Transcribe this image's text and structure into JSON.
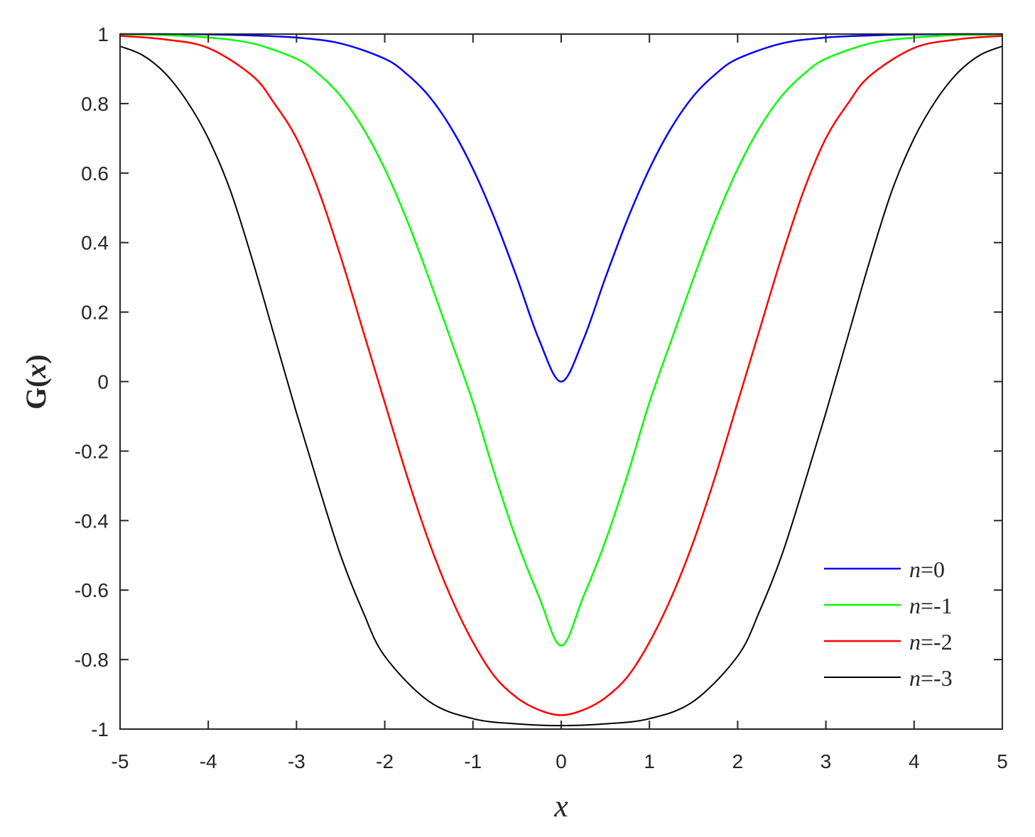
{
  "chart_data": {
    "type": "line",
    "xlabel": "x",
    "ylabel": {
      "prefix": "G(",
      "var": "x",
      "suffix": ")"
    },
    "xlim": [
      -5,
      5
    ],
    "ylim": [
      -1,
      1
    ],
    "x_ticks": [
      -5,
      -4,
      -3,
      -2,
      -1,
      0,
      1,
      2,
      3,
      4,
      5
    ],
    "y_ticks": [
      1,
      0.8,
      0.6,
      0.4,
      0.2,
      0,
      -0.2,
      -0.4,
      -0.6,
      -0.8,
      -1
    ],
    "x_tick_labels": [
      "-5",
      "-4",
      "-3",
      "-2",
      "-1",
      "0",
      "1",
      "2",
      "3",
      "4",
      "5"
    ],
    "y_tick_labels": [
      "1",
      "0.8",
      "0.6",
      "0.4",
      "0.2",
      "0",
      "-0.2",
      "-0.4",
      "-0.6",
      "-0.8",
      "-1"
    ],
    "grid": false,
    "legend_position": "bottom-right",
    "series": [
      {
        "name": "n=0",
        "legend": {
          "var": "n",
          "rest": "=0"
        },
        "color": "#0000ff",
        "x": [
          -5,
          -4.5,
          -4,
          -3.5,
          -3,
          -2.5,
          -2,
          -1.75,
          -1.5,
          -1.25,
          -1,
          -0.75,
          -0.5,
          -0.25,
          0,
          0.25,
          0.5,
          0.75,
          1,
          1.25,
          1.5,
          1.75,
          2,
          2.5,
          3,
          3.5,
          4,
          4.5,
          5
        ],
        "y": [
          1.0,
          1.0,
          0.999,
          0.996,
          0.99,
          0.973,
          0.929,
          0.885,
          0.822,
          0.731,
          0.612,
          0.466,
          0.298,
          0.12,
          0.0,
          0.12,
          0.298,
          0.466,
          0.612,
          0.731,
          0.822,
          0.885,
          0.929,
          0.973,
          0.99,
          0.996,
          0.999,
          1.0,
          1.0
        ]
      },
      {
        "name": "n=-1",
        "legend": {
          "var": "n",
          "rest": "=-1"
        },
        "color": "#00ff00",
        "x": [
          -5,
          -4.5,
          -4,
          -3.5,
          -3,
          -2.75,
          -2.5,
          -2.25,
          -2,
          -1.75,
          -1.5,
          -1.25,
          -1,
          -0.75,
          -0.5,
          -0.25,
          0,
          0.25,
          0.5,
          0.75,
          1,
          1.25,
          1.5,
          1.75,
          2,
          2.25,
          2.5,
          2.75,
          3,
          3.5,
          4,
          4.5,
          5
        ],
        "y": [
          0.999,
          0.997,
          0.99,
          0.973,
          0.929,
          0.885,
          0.822,
          0.731,
          0.612,
          0.466,
          0.298,
          0.12,
          -0.06,
          -0.27,
          -0.46,
          -0.62,
          -0.76,
          -0.62,
          -0.46,
          -0.27,
          -0.06,
          0.12,
          0.298,
          0.466,
          0.612,
          0.731,
          0.822,
          0.885,
          0.929,
          0.973,
          0.99,
          0.997,
          0.999
        ]
      },
      {
        "name": "n=-2",
        "legend": {
          "var": "n",
          "rest": "=-2"
        },
        "color": "#ff0000",
        "x": [
          -5,
          -4.5,
          -4,
          -3.5,
          -3.25,
          -3,
          -2.75,
          -2.5,
          -2.25,
          -2,
          -1.75,
          -1.5,
          -1.25,
          -1,
          -0.75,
          -0.5,
          -0.25,
          0,
          0.25,
          0.5,
          0.75,
          1,
          1.25,
          1.5,
          1.75,
          2,
          2.25,
          2.5,
          2.75,
          3,
          3.25,
          3.5,
          4,
          4.5,
          5
        ],
        "y": [
          0.995,
          0.985,
          0.96,
          0.88,
          0.8,
          0.7,
          0.55,
          0.36,
          0.15,
          -0.06,
          -0.27,
          -0.46,
          -0.62,
          -0.75,
          -0.85,
          -0.91,
          -0.945,
          -0.96,
          -0.945,
          -0.91,
          -0.85,
          -0.75,
          -0.62,
          -0.46,
          -0.27,
          -0.06,
          0.15,
          0.36,
          0.55,
          0.7,
          0.8,
          0.88,
          0.96,
          0.985,
          0.995
        ]
      },
      {
        "name": "n=-3",
        "legend": {
          "var": "n",
          "rest": "=-3"
        },
        "color": "#000000",
        "x": [
          -5,
          -4.75,
          -4.5,
          -4.25,
          -4,
          -3.75,
          -3.5,
          -3.25,
          -3,
          -2.75,
          -2.5,
          -2.25,
          -2,
          -1.5,
          -1,
          -0.5,
          0,
          0.5,
          1,
          1.5,
          2,
          2.25,
          2.5,
          2.75,
          3,
          3.25,
          3.5,
          3.75,
          4,
          4.25,
          4.5,
          4.75,
          5
        ],
        "y": [
          0.965,
          0.94,
          0.89,
          0.81,
          0.7,
          0.55,
          0.35,
          0.13,
          -0.09,
          -0.3,
          -0.5,
          -0.66,
          -0.79,
          -0.92,
          -0.97,
          -0.985,
          -0.99,
          -0.985,
          -0.97,
          -0.92,
          -0.79,
          -0.66,
          -0.5,
          -0.3,
          -0.09,
          0.13,
          0.35,
          0.55,
          0.7,
          0.81,
          0.89,
          0.94,
          0.965
        ]
      }
    ]
  }
}
